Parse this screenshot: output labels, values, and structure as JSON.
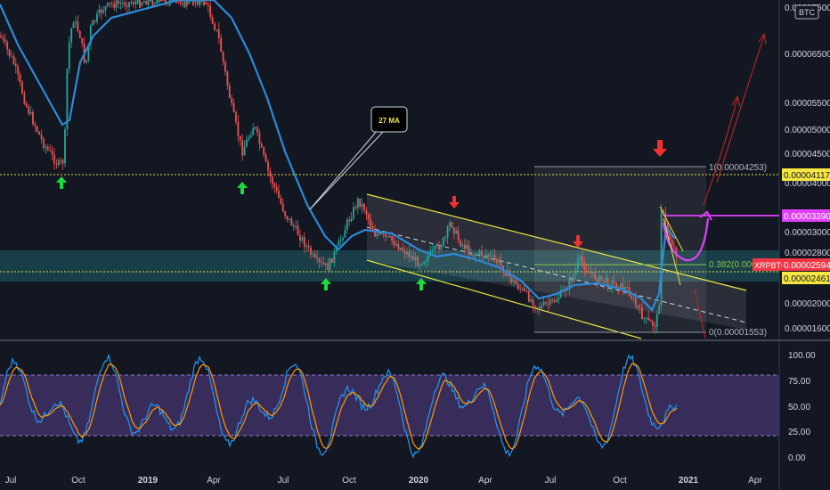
{
  "chart_data": [
    {
      "type": "candlestick",
      "symbol": "XRPBTC",
      "currency_badge": "BTC",
      "y_scale": "log",
      "x_ticks": [
        "Jul",
        "Oct",
        "2019",
        "Apr",
        "Jul",
        "Oct",
        "2020",
        "Apr",
        "Jul",
        "Oct",
        "2021",
        "Apr"
      ],
      "y_ticks": [
        "0.00007500",
        "0.00006500",
        "0.00005500",
        "0.00005000",
        "0.00004500",
        "0.00004000",
        "0.00003500",
        "0.00003000",
        "0.00002800",
        "0.00002500",
        "0.00002000",
        "0.00001600"
      ],
      "price_labels": {
        "resistance": "0.00004117",
        "target": "0.00003390",
        "current": "0.00002594",
        "support": "0.00002461"
      },
      "current_label_prefix": "XRPBTC",
      "fib_levels": {
        "top": "1(0.00004253)",
        "mid": "0.382(0.00002",
        "bottom": "0(0.00001553)"
      },
      "ma_label": "27 MA",
      "approx_close_series": [
        {
          "date": "2018-07",
          "price": 7e-05
        },
        {
          "date": "2018-09",
          "price": 4.2e-05
        },
        {
          "date": "2018-10",
          "price": 6.8e-05
        },
        {
          "date": "2018-12",
          "price": 9.5e-05
        },
        {
          "date": "2019-04",
          "price": 7.8e-05
        },
        {
          "date": "2019-05",
          "price": 4.5e-05
        },
        {
          "date": "2019-07",
          "price": 3.2e-05
        },
        {
          "date": "2019-09",
          "price": 2.5e-05
        },
        {
          "date": "2019-10",
          "price": 3.8e-05
        },
        {
          "date": "2020-01",
          "price": 2.6e-05
        },
        {
          "date": "2020-02",
          "price": 3.2e-05
        },
        {
          "date": "2020-04",
          "price": 2.6e-05
        },
        {
          "date": "2020-06",
          "price": 2e-05
        },
        {
          "date": "2020-08",
          "price": 2.8e-05
        },
        {
          "date": "2020-10",
          "price": 2.2e-05
        },
        {
          "date": "2020-11",
          "price": 1.6e-05
        },
        {
          "date": "2020-11",
          "price": 4.2e-05
        },
        {
          "date": "2020-12",
          "price": 2.6e-05
        }
      ]
    },
    {
      "type": "line",
      "indicator": "Stochastic RSI",
      "y_ticks": [
        "100.00",
        "75.00",
        "50.00",
        "25.00",
        "0.00"
      ],
      "bands": [
        20,
        80
      ],
      "ylim": [
        0,
        100
      ]
    }
  ]
}
